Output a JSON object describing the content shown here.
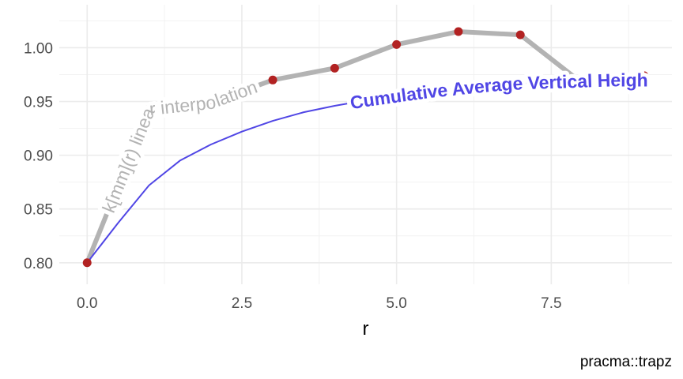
{
  "chart_data": {
    "type": "line",
    "xlabel": "r",
    "ylabel": "",
    "caption": "pracma::trapz",
    "xlim": [
      -0.45,
      9.45
    ],
    "ylim": [
      0.78,
      1.04
    ],
    "x_ticks": [
      0.0,
      2.5,
      5.0,
      7.5
    ],
    "x_tick_labels": [
      "0.0",
      "2.5",
      "5.0",
      "7.5"
    ],
    "y_ticks": [
      0.8,
      0.85,
      0.9,
      0.95,
      1.0
    ],
    "y_tick_labels": [
      "0.80",
      "0.85",
      "0.90",
      "0.95",
      "1.00"
    ],
    "grid": true,
    "series": [
      {
        "name": "k[mm](r) linear interpolation",
        "color": "#b3b3b3",
        "x": [
          0,
          1,
          2,
          3,
          4,
          5,
          6,
          7,
          8,
          9
        ],
        "values": [
          0.8,
          0.943,
          0.949,
          0.97,
          0.981,
          1.003,
          1.015,
          1.012,
          0.967,
          0.974
        ],
        "point_color": "#b22222"
      },
      {
        "name": "Cumulative Average Vertical Height",
        "color": "#5046e5",
        "x": [
          0,
          0.5,
          1,
          1.5,
          2,
          2.5,
          3,
          3.5,
          4,
          4.5,
          5,
          5.5,
          6,
          6.5,
          7,
          7.5,
          8,
          8.5,
          9
        ],
        "values": [
          0.8,
          0.837,
          0.872,
          0.895,
          0.91,
          0.922,
          0.932,
          0.94,
          0.946,
          0.951,
          0.955,
          0.959,
          0.962,
          0.965,
          0.967,
          0.968,
          0.969,
          0.97,
          0.97
        ]
      }
    ]
  }
}
